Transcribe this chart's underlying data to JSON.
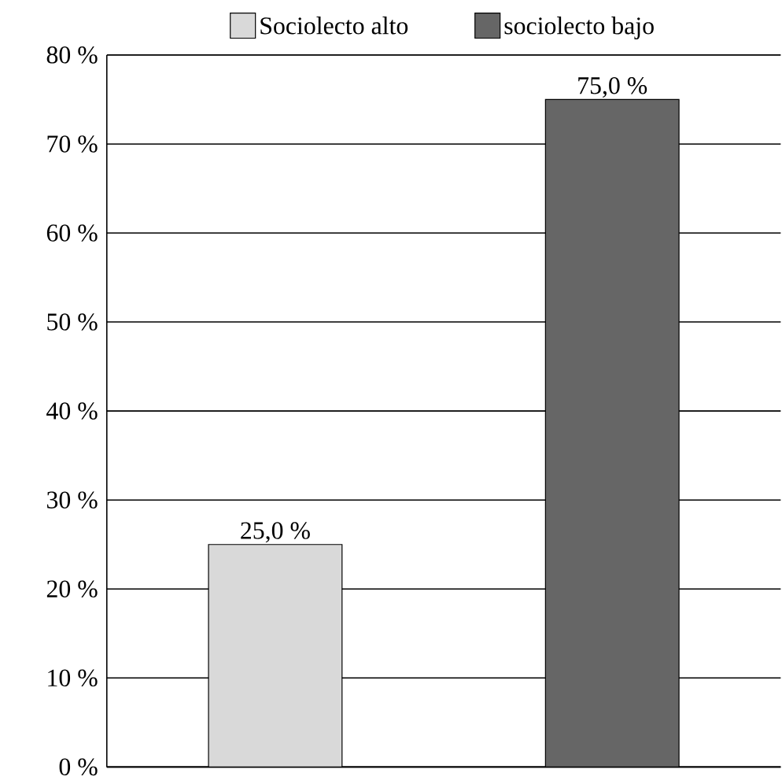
{
  "chart_data": {
    "type": "bar",
    "categories": [
      null,
      null
    ],
    "series": [
      {
        "name": "Sociolecto alto",
        "color": "#d9d9d9",
        "values": [
          25,
          null
        ],
        "value_labels": [
          "25,0 %",
          null
        ]
      },
      {
        "name": "sociolecto bajo",
        "color": "#666666",
        "values": [
          null,
          75
        ],
        "value_labels": [
          null,
          "75,0 %"
        ]
      }
    ],
    "ylim": [
      0,
      80
    ],
    "yticks": [
      {
        "value": 0,
        "label": "0 %"
      },
      {
        "value": 10,
        "label": "10 %"
      },
      {
        "value": 20,
        "label": "20 %"
      },
      {
        "value": 30,
        "label": "30 %"
      },
      {
        "value": 40,
        "label": "40 %"
      },
      {
        "value": 50,
        "label": "50 %"
      },
      {
        "value": 60,
        "label": "60 %"
      },
      {
        "value": 70,
        "label": "70 %"
      },
      {
        "value": 80,
        "label": "80 %"
      }
    ],
    "grid": "y",
    "legend": "top"
  }
}
